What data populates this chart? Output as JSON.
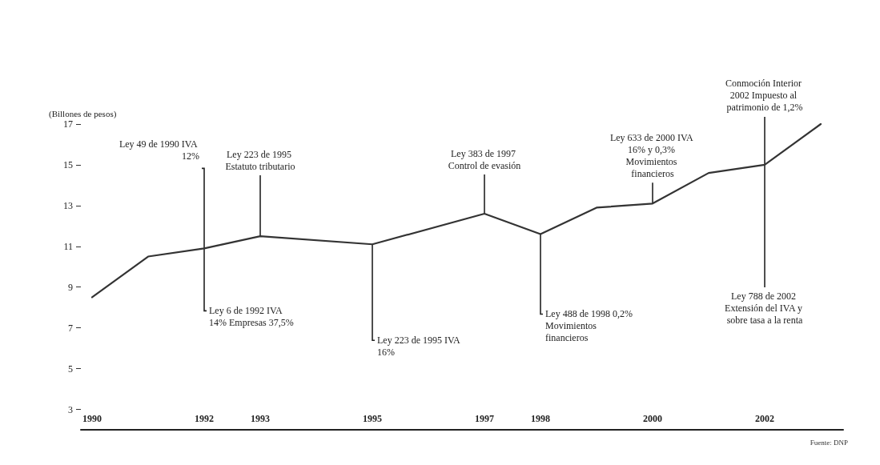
{
  "chart_data": {
    "type": "line",
    "ylabel": "(Billones de pesos)",
    "x": [
      1990,
      1991,
      1992,
      1993,
      1995,
      1997,
      1998,
      1999,
      2000,
      2001,
      2002,
      2003
    ],
    "series": [
      {
        "color": "#333333",
        "values": [
          8.5,
          10.5,
          10.9,
          11.5,
          11.1,
          12.6,
          11.6,
          12.9,
          13.1,
          14.6,
          15.0,
          17.0
        ]
      }
    ],
    "xlim": [
      1989.8,
      2003.4
    ],
    "xticks": [
      1990,
      1992,
      1993,
      1995,
      1997,
      1998,
      2000,
      2002
    ],
    "ylim": [
      2,
      17
    ],
    "yticks": [
      3,
      5,
      7,
      9,
      11,
      13,
      15,
      17
    ],
    "grid": false,
    "marker": "none",
    "line_style": "solid",
    "annotations": [
      {
        "text": "Ley 49 de 1990 IVA 12%",
        "x": 1992,
        "y": 10.9
      },
      {
        "text": "Ley 6 de 1992 IVA 14% Empresas 37,5%",
        "x": 1992,
        "y": 10.9
      },
      {
        "text": "Ley 223 de 1995 Estatuto tributario",
        "x": 1993,
        "y": 11.5
      },
      {
        "text": "Ley 223 de 1995 IVA 16%",
        "x": 1995,
        "y": 11.1
      },
      {
        "text": "Ley 383 de 1997 Control de evasión",
        "x": 1997,
        "y": 12.6
      },
      {
        "text": "Ley 488 de 1998 0,2% Movimientos financieros",
        "x": 1998,
        "y": 11.6
      },
      {
        "text": "Ley 633 de 2000 IVA 16% y 0,3% Movimientos financieros",
        "x": 2000,
        "y": 13.1
      },
      {
        "text": "Conmoción Interior 2002 Impuesto al patrimonio de 1,2%",
        "x": 2002,
        "y": 15.0
      },
      {
        "text": "Ley 788 de 2002 Extensión del IVA y sobre tasa a la renta",
        "x": 2002,
        "y": 15.0
      },
      "Fuente: DNP"
    ]
  }
}
